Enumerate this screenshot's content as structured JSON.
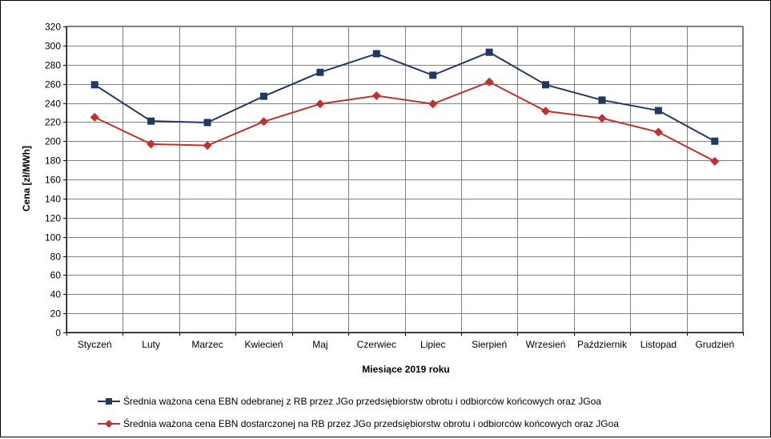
{
  "chart_data": {
    "type": "line",
    "title": "",
    "xlabel": "Miesiące 2019  roku",
    "ylabel": "Cena [zł/MWh]",
    "ylim": [
      0,
      320
    ],
    "ytick_step": 20,
    "grid": true,
    "legend_position": "bottom",
    "categories": [
      "Styczeń",
      "Luty",
      "Marzec",
      "Kwiecień",
      "Maj",
      "Czerwiec",
      "Lipiec",
      "Sierpień",
      "Wrzesień",
      "Październik",
      "Listopad",
      "Grudzień"
    ],
    "series": [
      {
        "name": "Średnia ważona cena EBN odebranej z RB przez JGo przedsiębiorstw obrotu i odbiorców końcowych oraz JGoa",
        "color": "#1f3864",
        "marker": "square",
        "values": [
          259,
          221,
          219.5,
          247,
          272,
          291.5,
          269,
          293,
          259,
          243,
          232,
          200
        ]
      },
      {
        "name": "Średnia ważona cena EBN dostarczonej na RB przez JGo przedsiębiorstw obrotu i odbiorców końcowych oraz JGoa",
        "color": "#c0302c",
        "marker": "diamond",
        "values": [
          225,
          197,
          195.5,
          220.5,
          239,
          247.5,
          239,
          262,
          231.5,
          224,
          209.5,
          179
        ]
      }
    ]
  }
}
